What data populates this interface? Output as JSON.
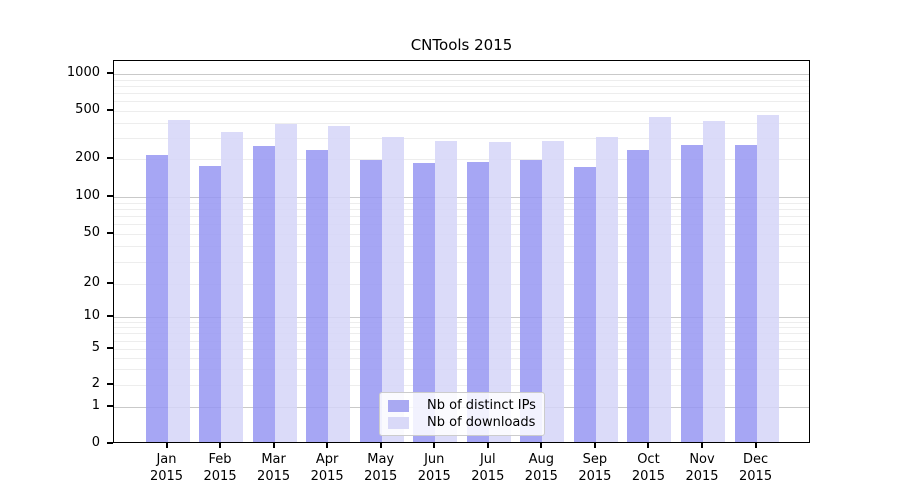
{
  "chart_data": {
    "type": "bar",
    "title": "CNTools 2015",
    "months": [
      "Jan",
      "Feb",
      "Mar",
      "Apr",
      "May",
      "Jun",
      "Jul",
      "Aug",
      "Sep",
      "Oct",
      "Nov",
      "Dec"
    ],
    "year": "2015",
    "series": [
      {
        "name": "Nb of distinct IPs",
        "color": "rgba(150,150,242,0.85)",
        "solid_color": "#a9a9f2",
        "values": [
          207,
          170,
          245,
          228,
          188,
          180,
          183,
          188,
          168,
          230,
          250,
          250
        ]
      },
      {
        "name": "Nb of downloads",
        "color": "rgba(213,213,248,0.85)",
        "solid_color": "#d9d9f8",
        "values": [
          405,
          320,
          378,
          365,
          291,
          272,
          268,
          273,
          291,
          430,
          394,
          448
        ]
      }
    ],
    "yscale": "symlog",
    "y_ticks": [
      0,
      1,
      2,
      5,
      10,
      20,
      50,
      100,
      200,
      500,
      1000
    ],
    "ylim": [
      0,
      1300
    ],
    "grid": "horizontal log gridlines, major at powers of 10, faint minors",
    "legend_position": "inside plot, lower center"
  }
}
